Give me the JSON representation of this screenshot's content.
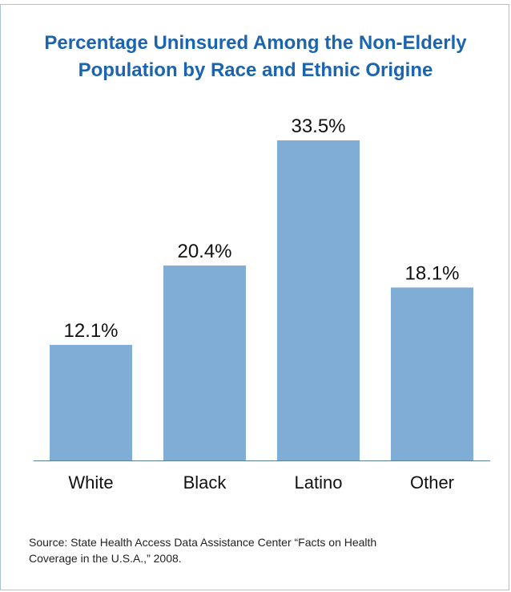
{
  "chart_data": {
    "type": "bar",
    "title_lines": [
      "Percentage Uninsured Among the Non-Elderly",
      "Population by Race and Ethnic Origine"
    ],
    "categories": [
      "White",
      "Black",
      "Latino",
      "Other"
    ],
    "values": [
      12.1,
      20.4,
      33.5,
      18.1
    ],
    "value_labels": [
      "12.1%",
      "20.4%",
      "33.5%",
      "18.1%"
    ],
    "ylim": [
      0,
      35.6
    ],
    "grid": false,
    "bar_color": "#7fadd6",
    "axis_color": "#5b7fa3"
  },
  "source": {
    "lines": [
      "Source:  State Health Access Data Assistance Center  “Facts on Health",
      "Coverage in the U.S.A.,” 2008."
    ]
  }
}
